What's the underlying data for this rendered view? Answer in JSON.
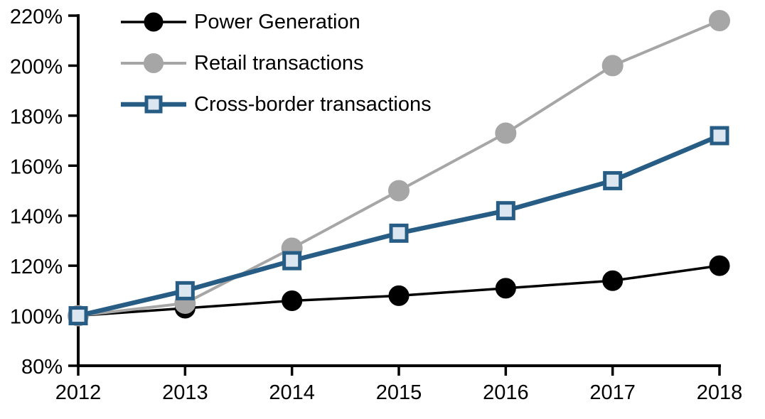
{
  "chart_data": {
    "type": "line",
    "x_categories": [
      "2012",
      "2013",
      "2014",
      "2015",
      "2016",
      "2017",
      "2018"
    ],
    "y_tick_labels": [
      "80%",
      "100%",
      "120%",
      "140%",
      "160%",
      "180%",
      "200%",
      "220%"
    ],
    "ylim": [
      80,
      220
    ],
    "ytick_step": 20,
    "grid": false,
    "legend_position": "top-left-inside",
    "axis_color": "#000000",
    "text_color": "#000000",
    "series": [
      {
        "name": "Power Generation",
        "values": [
          100,
          103,
          106,
          108,
          111,
          114,
          120
        ],
        "line_color": "#000000",
        "line_width": 3.5,
        "marker": "circle",
        "marker_fill": "#000000",
        "marker_stroke": "#000000",
        "marker_size": 28
      },
      {
        "name": "Retail transactions",
        "values": [
          100,
          105,
          127,
          150,
          173,
          200,
          218
        ],
        "line_color": "#A6A6A6",
        "line_width": 4,
        "marker": "circle",
        "marker_fill": "#A6A6A6",
        "marker_stroke": "#A6A6A6",
        "marker_size": 29
      },
      {
        "name": "Cross-border transactions",
        "values": [
          100,
          110,
          122,
          133,
          142,
          154,
          172
        ],
        "line_color": "#275C85",
        "line_width": 6.5,
        "marker": "square",
        "marker_fill": "#DCE6F1",
        "marker_stroke": "#275C85",
        "marker_size": 27
      }
    ]
  }
}
